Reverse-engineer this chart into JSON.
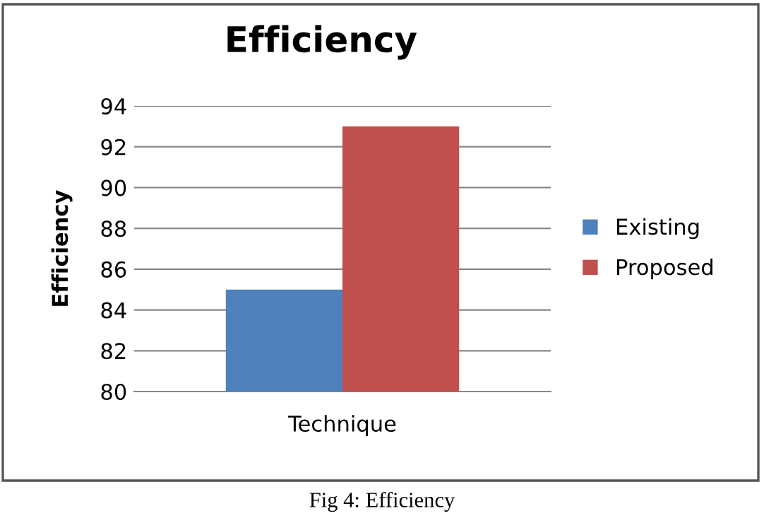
{
  "chart_data": {
    "type": "bar",
    "title": "Efficiency",
    "ylabel": "Efficiency",
    "categories": [
      "Technique"
    ],
    "series": [
      {
        "name": "Existing",
        "color": "#4f81bd",
        "values": [
          85
        ]
      },
      {
        "name": "Proposed",
        "color": "#c0504d",
        "values": [
          93
        ]
      }
    ],
    "ylim": [
      80,
      94
    ],
    "yticks": [
      80,
      82,
      84,
      86,
      88,
      90,
      92,
      94
    ],
    "grid": "y",
    "legend": "right",
    "annotations": [
      "Fig 4: Efficiency"
    ]
  }
}
